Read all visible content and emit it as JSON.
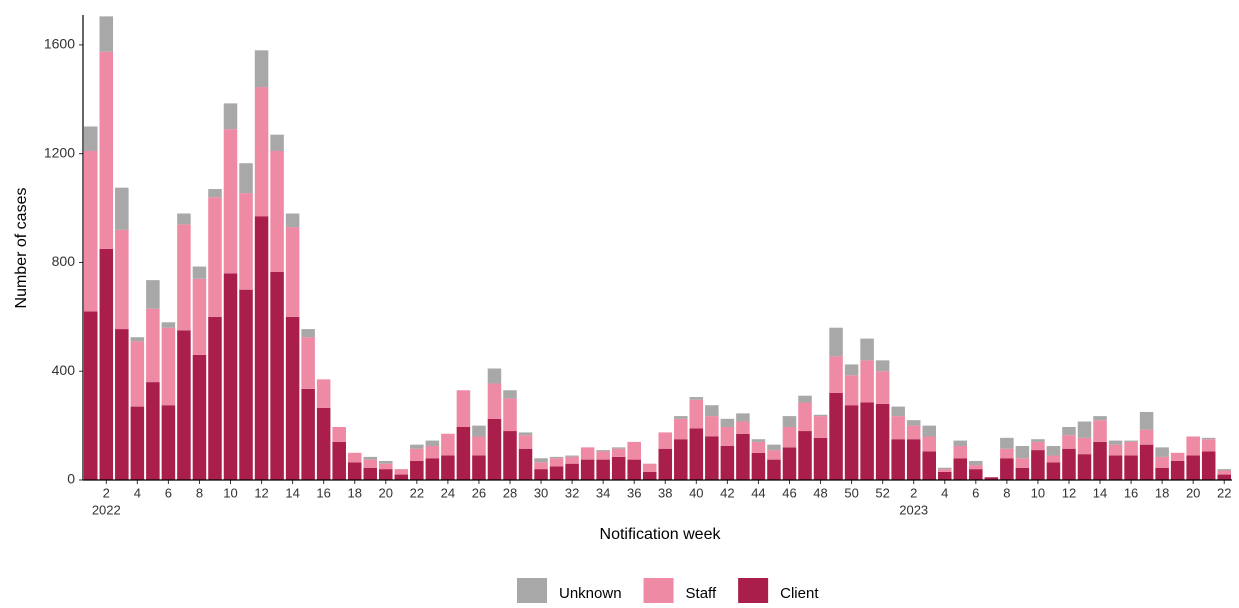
{
  "chart_data": {
    "type": "stacked_bar",
    "x_label": "Notification week",
    "y_label": "Number of cases",
    "categories": [
      null,
      "2",
      null,
      "4",
      null,
      "6",
      null,
      "8",
      null,
      "10",
      null,
      "12",
      null,
      "14",
      null,
      "16",
      null,
      "18",
      null,
      "20",
      null,
      "22",
      null,
      "24",
      null,
      "26",
      null,
      "28",
      null,
      "30",
      null,
      "32",
      null,
      "34",
      null,
      "36",
      null,
      "38",
      null,
      "40",
      null,
      "42",
      null,
      "44",
      null,
      "46",
      null,
      "48",
      null,
      "50",
      null,
      "52",
      null,
      "2",
      null,
      "4",
      null,
      "6",
      null,
      "8",
      null,
      "10",
      null,
      "12",
      null,
      "14",
      null,
      "16",
      null,
      "18",
      null,
      "20",
      null,
      "22"
    ],
    "years": [
      "2022",
      "2023"
    ],
    "series": [
      {
        "name": "Unknown",
        "color": "#a8a8a8",
        "values": [
          90,
          130,
          155,
          15,
          105,
          20,
          40,
          45,
          30,
          95,
          110,
          135,
          60,
          50,
          30,
          0,
          0,
          0,
          10,
          10,
          0,
          15,
          20,
          0,
          0,
          40,
          55,
          30,
          10,
          15,
          5,
          5,
          0,
          5,
          5,
          0,
          0,
          0,
          10,
          10,
          40,
          30,
          30,
          10,
          20,
          40,
          25,
          5,
          105,
          40,
          80,
          40,
          35,
          20,
          40,
          5,
          20,
          15,
          0,
          40,
          45,
          10,
          35,
          30,
          60,
          15,
          15,
          5,
          65,
          35,
          0,
          0,
          5,
          5
        ]
      },
      {
        "name": "Staff",
        "color": "#ee8aa4",
        "values": [
          590,
          725,
          365,
          240,
          270,
          285,
          390,
          280,
          440,
          530,
          355,
          475,
          445,
          330,
          190,
          105,
          55,
          35,
          30,
          20,
          20,
          45,
          45,
          80,
          135,
          70,
          130,
          120,
          50,
          25,
          30,
          25,
          45,
          30,
          30,
          65,
          30,
          60,
          75,
          105,
          75,
          70,
          45,
          40,
          35,
          75,
          105,
          80,
          135,
          110,
          155,
          120,
          85,
          50,
          55,
          10,
          45,
          15,
          0,
          35,
          35,
          30,
          25,
          50,
          60,
          80,
          40,
          50,
          55,
          40,
          30,
          70,
          45,
          15
        ]
      },
      {
        "name": "Client",
        "color": "#a91e4a",
        "values": [
          620,
          850,
          555,
          270,
          360,
          275,
          550,
          460,
          600,
          760,
          700,
          970,
          765,
          600,
          335,
          265,
          140,
          65,
          45,
          40,
          20,
          70,
          80,
          90,
          195,
          90,
          225,
          180,
          115,
          40,
          50,
          60,
          75,
          75,
          85,
          75,
          30,
          115,
          150,
          190,
          160,
          125,
          170,
          100,
          75,
          120,
          180,
          155,
          320,
          275,
          285,
          280,
          150,
          150,
          105,
          30,
          80,
          40,
          10,
          80,
          45,
          110,
          65,
          115,
          95,
          140,
          90,
          90,
          130,
          45,
          70,
          90,
          105,
          20
        ]
      }
    ],
    "ylim": [
      0,
      1710
    ],
    "yticks": [
      0,
      400,
      800,
      1200,
      1600
    ]
  }
}
